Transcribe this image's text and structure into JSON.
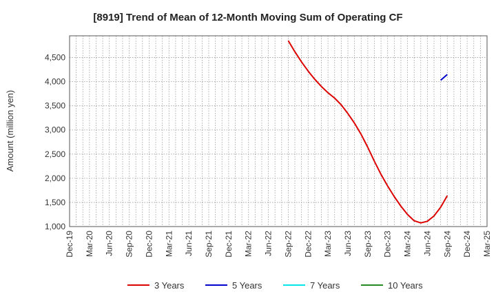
{
  "chart_data": {
    "type": "line",
    "title": "[8919]  Trend of Mean of 12-Month Moving Sum of Operating CF",
    "xlabel": "",
    "ylabel": "Amount (million yen)",
    "ylim": [
      1000,
      4950
    ],
    "yticks": [
      1000,
      1500,
      2000,
      2500,
      3000,
      3500,
      4000,
      4500
    ],
    "ytick_labels": [
      "1,000",
      "1,500",
      "2,000",
      "2,500",
      "3,000",
      "3,500",
      "4,000",
      "4,500"
    ],
    "x_categories": [
      "Dec-19",
      "Mar-20",
      "Jun-20",
      "Sep-20",
      "Dec-20",
      "Mar-21",
      "Jun-21",
      "Sep-21",
      "Dec-21",
      "Mar-22",
      "Jun-22",
      "Sep-22",
      "Dec-22",
      "Mar-23",
      "Jun-23",
      "Sep-23",
      "Dec-23",
      "Mar-24",
      "Jun-24",
      "Sep-24",
      "Dec-24",
      "Mar-25"
    ],
    "x_range_months": [
      0,
      63
    ],
    "grid": true,
    "legend_position": "bottom",
    "series": [
      {
        "name": "3 Years",
        "color": "#dd0000",
        "x_months": [
          33,
          34,
          35,
          36,
          37,
          38,
          39,
          40,
          41,
          42,
          43,
          44,
          45,
          46,
          47,
          48,
          49,
          50,
          51,
          52,
          53,
          54,
          55,
          56,
          57
        ],
        "values": [
          4850,
          4620,
          4410,
          4220,
          4050,
          3900,
          3770,
          3660,
          3520,
          3340,
          3140,
          2910,
          2640,
          2350,
          2080,
          1840,
          1620,
          1420,
          1250,
          1120,
          1075,
          1110,
          1220,
          1400,
          1640
        ]
      },
      {
        "name": "5 Years",
        "color": "#0000cc",
        "x_months": [
          56,
          57
        ],
        "values": [
          4030,
          4150
        ]
      },
      {
        "name": "7 Years",
        "color": "#00e5ee",
        "x_months": [],
        "values": []
      },
      {
        "name": "10 Years",
        "color": "#228b22",
        "x_months": [],
        "values": []
      }
    ]
  }
}
